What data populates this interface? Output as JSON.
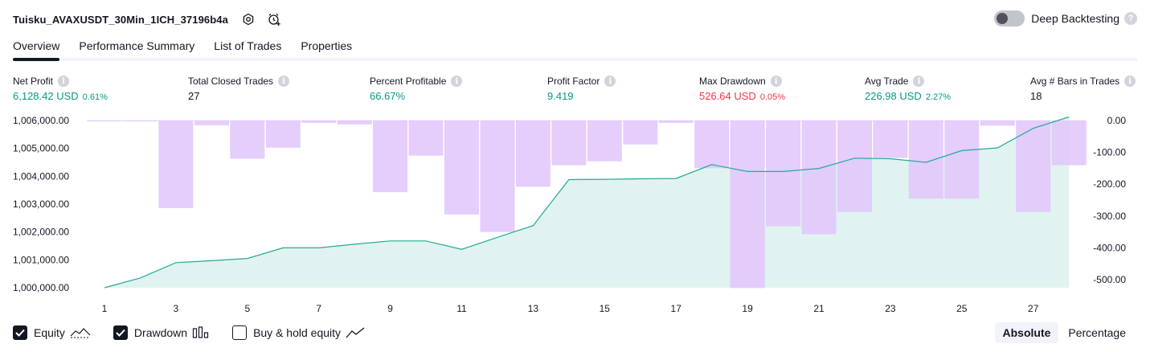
{
  "header": {
    "strategy_name": "Tuisku_AVAXUSDT_30Min_1ICH_37196b4a",
    "settings_icon": "settings-icon",
    "alert_icon": "add-alert-icon",
    "deep_backtesting_label": "Deep Backtesting",
    "deep_backtesting_enabled": false
  },
  "tabs": [
    {
      "label": "Overview",
      "active": true
    },
    {
      "label": "Performance Summary",
      "active": false
    },
    {
      "label": "List of Trades",
      "active": false
    },
    {
      "label": "Properties",
      "active": false
    }
  ],
  "metrics": {
    "net_profit": {
      "label": "Net Profit",
      "value": "6,128.42 USD",
      "pct": "0.61%"
    },
    "total_closed_trades": {
      "label": "Total Closed Trades",
      "value": "27"
    },
    "percent_profitable": {
      "label": "Percent Profitable",
      "value": "66.67%"
    },
    "profit_factor": {
      "label": "Profit Factor",
      "value": "9.419"
    },
    "max_drawdown": {
      "label": "Max Drawdown",
      "value": "526.64 USD",
      "pct": "0.05%"
    },
    "avg_trade": {
      "label": "Avg Trade",
      "value": "226.98 USD",
      "pct": "2.27%"
    },
    "avg_bars": {
      "label": "Avg # Bars in Trades",
      "value": "18"
    }
  },
  "colors": {
    "equity_line": "#22ab94",
    "equity_fill": "#ddf2ee",
    "drawdown_bar": "#e1c4fb",
    "profit_green": "#089981",
    "loss_red": "#f23645"
  },
  "chart_data": {
    "type": "area",
    "x_ticks": [
      "1",
      "3",
      "5",
      "7",
      "9",
      "11",
      "13",
      "15",
      "17",
      "19",
      "21",
      "23",
      "25",
      "27"
    ],
    "left_axis": {
      "ticks": [
        "1,006,000.00",
        "1,005,000.00",
        "1,004,000.00",
        "1,003,000.00",
        "1,002,000.00",
        "1,001,000.00",
        "1,000,000.00"
      ],
      "ylim": [
        1000000,
        1006000
      ]
    },
    "right_axis": {
      "ticks": [
        "0.00",
        "-100.00",
        "-200.00",
        "-300.00",
        "-400.00",
        "-500.00"
      ],
      "ylim": [
        -525,
        0
      ]
    },
    "series": [
      {
        "name": "Equity",
        "type": "area",
        "axis": "left",
        "x": [
          1,
          2,
          3,
          4,
          5,
          6,
          7,
          8,
          9,
          10,
          11,
          12,
          13,
          14,
          15,
          16,
          17,
          18,
          19,
          20,
          21,
          22,
          23,
          24,
          25,
          26,
          27,
          28
        ],
        "values": [
          1000000,
          1000350,
          1000900,
          1000970,
          1001050,
          1001430,
          1001430,
          1001560,
          1001680,
          1001680,
          1001380,
          1001810,
          1002230,
          1003880,
          1003890,
          1003910,
          1003920,
          1004420,
          1004170,
          1004170,
          1004280,
          1004650,
          1004630,
          1004500,
          1004920,
          1005020,
          1005720,
          1006130
        ]
      },
      {
        "name": "Drawdown",
        "type": "bar",
        "axis": "right",
        "x": [
          1,
          2,
          3,
          4,
          5,
          6,
          7,
          8,
          9,
          10,
          11,
          12,
          13,
          14,
          15,
          16,
          17,
          18,
          19,
          20,
          21,
          22,
          23,
          24,
          25,
          26,
          27,
          28
        ],
        "values": [
          -2,
          -2,
          -275,
          -15,
          -120,
          -85,
          -7,
          -12,
          -225,
          -110,
          -295,
          -350,
          -208,
          -140,
          -128,
          -75,
          -7,
          -150,
          -526,
          -332,
          -357,
          -287,
          -117,
          -245,
          -245,
          -16,
          -287,
          -140
        ]
      }
    ],
    "grid": false
  },
  "legend": {
    "equity": {
      "label": "Equity",
      "checked": true,
      "icon": "equity-line-icon"
    },
    "drawdown": {
      "label": "Drawdown",
      "checked": true,
      "icon": "drawdown-bars-icon"
    },
    "buy_hold": {
      "label": "Buy & hold equity",
      "checked": false,
      "icon": "buy-hold-line-icon"
    }
  },
  "mode": {
    "absolute_label": "Absolute",
    "percentage_label": "Percentage",
    "selected": "Absolute"
  }
}
